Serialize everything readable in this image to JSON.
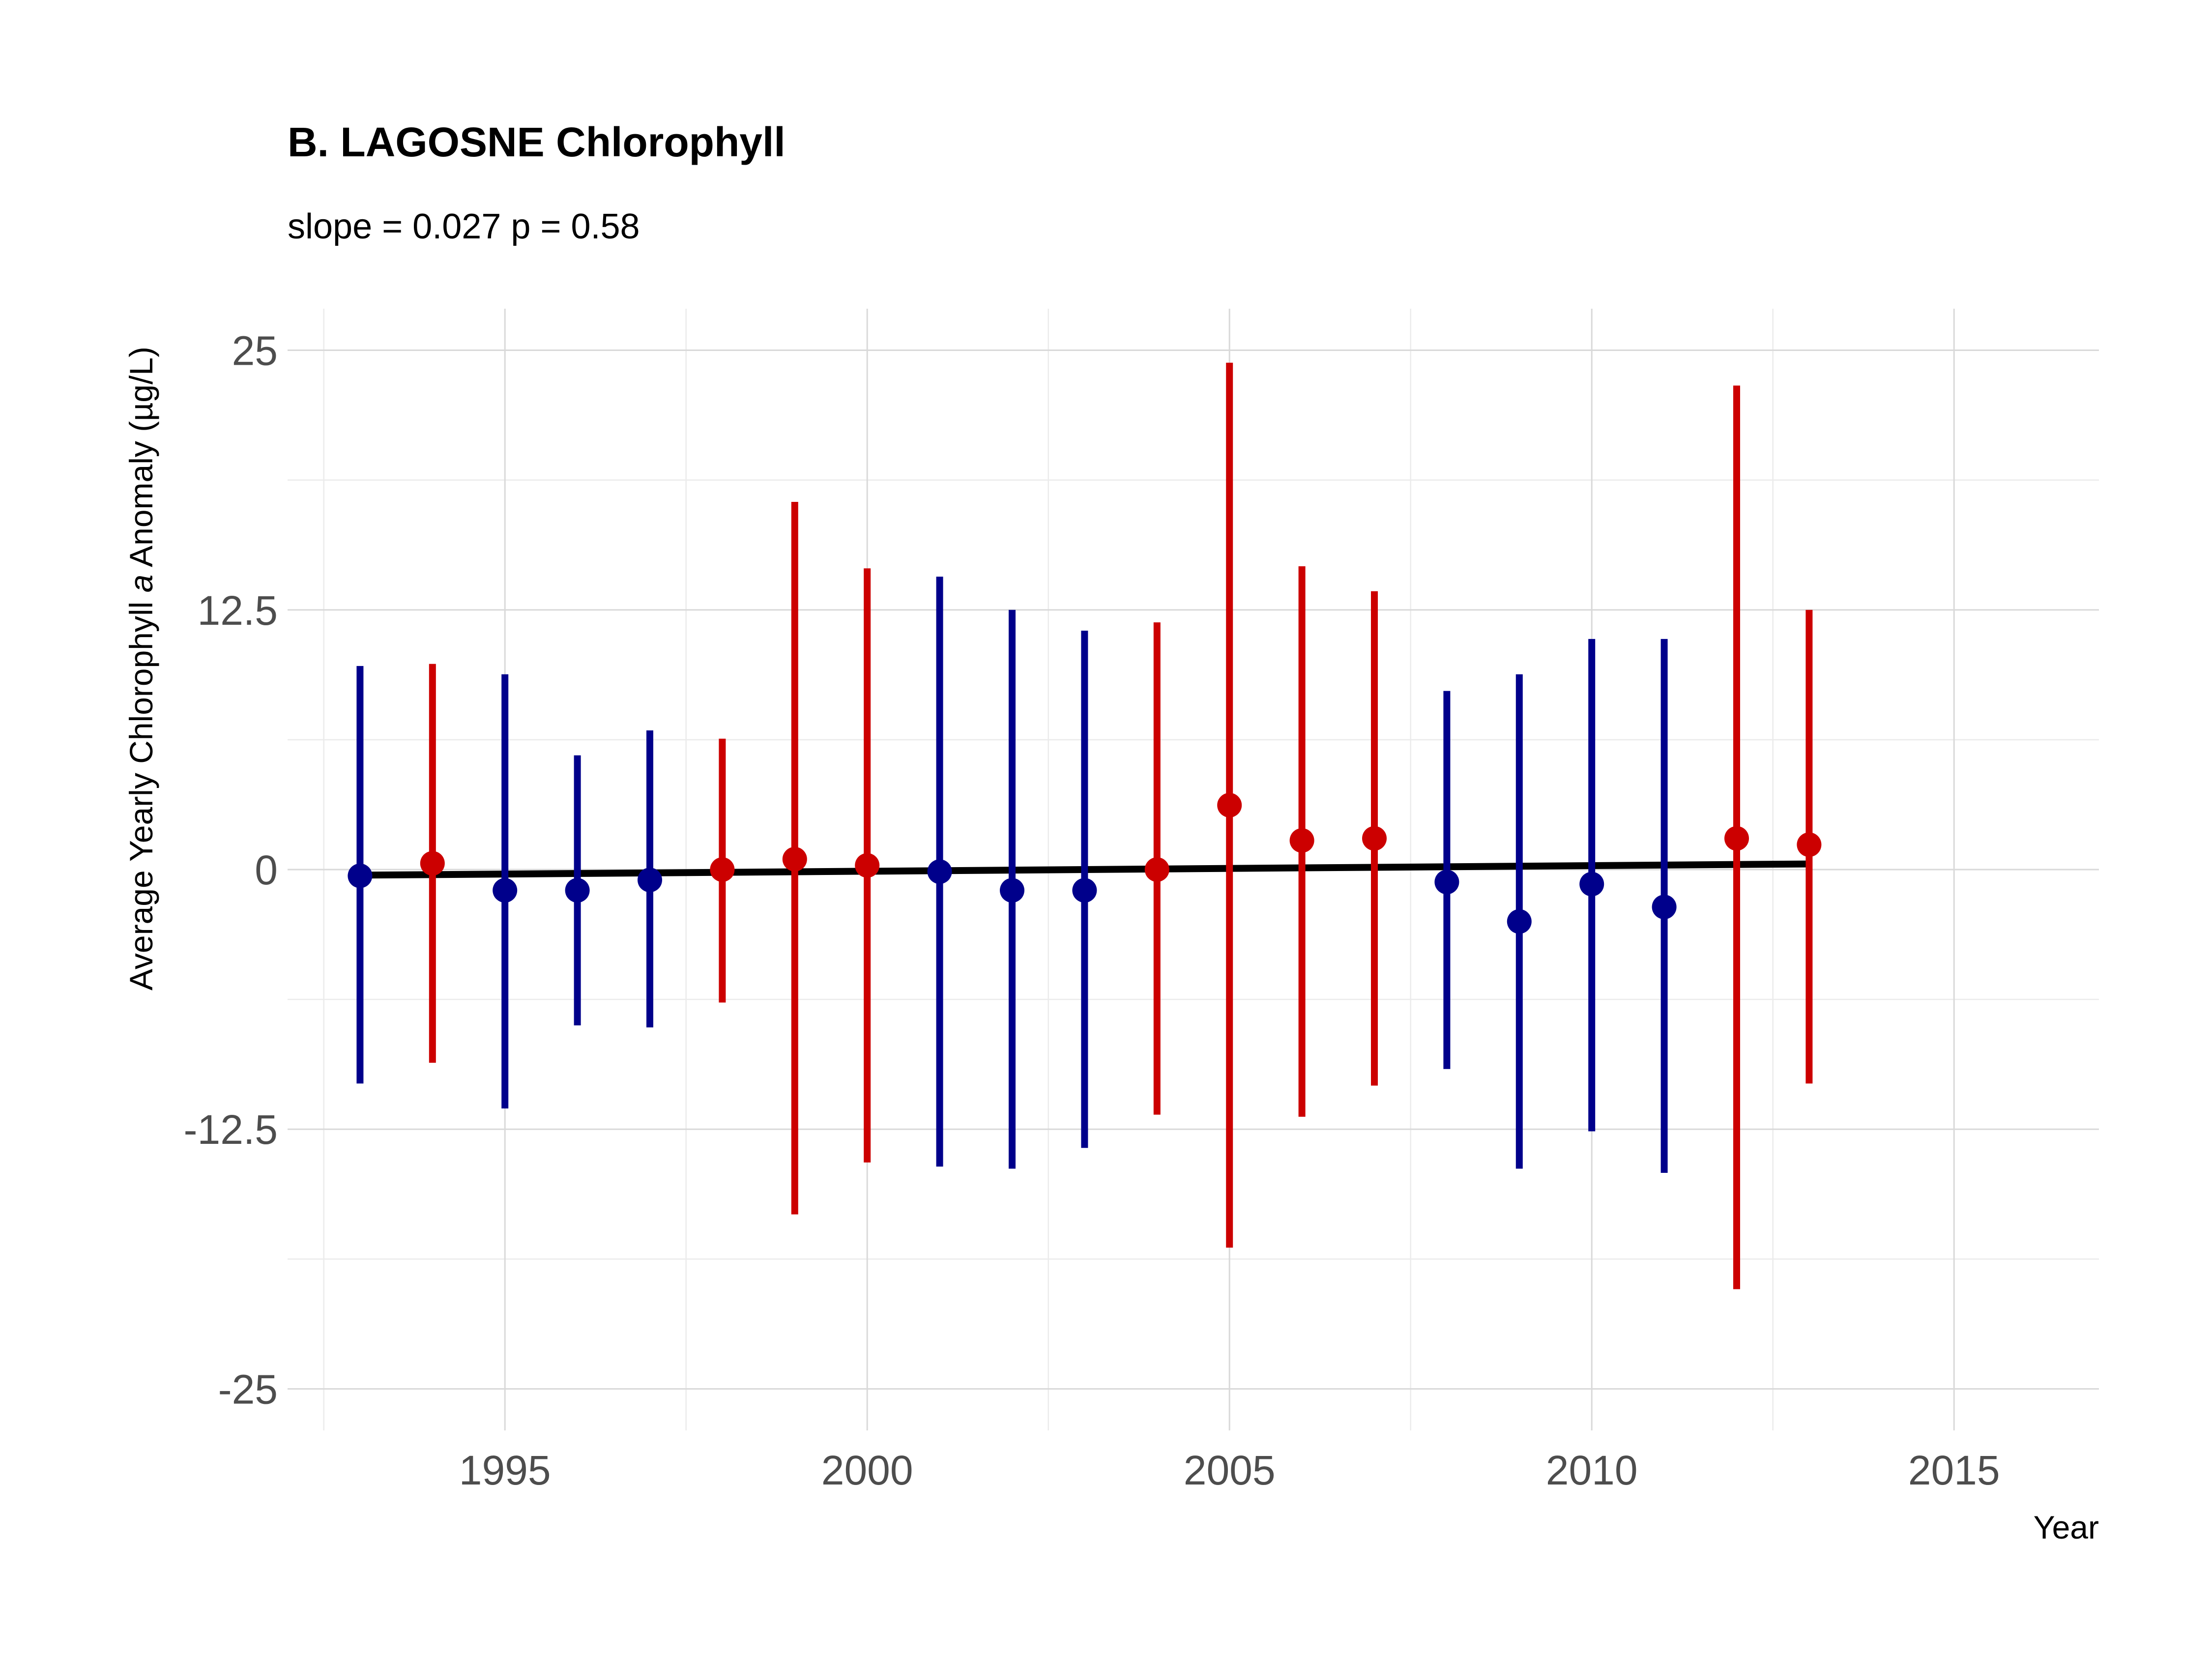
{
  "chart_data": {
    "type": "scatter",
    "title": "B. LAGOSNE Chlorophyll",
    "subtitle": "slope = 0.027 p = 0.58",
    "xlabel": "Year",
    "ylabel_parts": [
      "Average Yearly Chlorophyll ",
      "a",
      " Anomaly (µg/L)"
    ],
    "xlim": [
      1992,
      2017
    ],
    "ylim": [
      -27,
      27
    ],
    "x_ticks": [
      {
        "value": 1995,
        "label": "1995"
      },
      {
        "value": 2000,
        "label": "2000"
      },
      {
        "value": 2005,
        "label": "2005"
      },
      {
        "value": 2010,
        "label": "2010"
      },
      {
        "value": 2015,
        "label": "2015"
      }
    ],
    "y_ticks": [
      {
        "value": 25,
        "label": "25"
      },
      {
        "value": 12.5,
        "label": "12.5"
      },
      {
        "value": 0,
        "label": "0"
      },
      {
        "value": -12.5,
        "label": "-12.5"
      },
      {
        "value": -25,
        "label": "-25"
      }
    ],
    "grid": true,
    "colors": {
      "negative": "#00008B",
      "positive": "#CC0000",
      "trend": "#000000"
    },
    "series": [
      {
        "points": [
          {
            "x": 1993,
            "y": -0.3,
            "lower": -10.3,
            "upper": 9.8
          },
          {
            "x": 1994,
            "y": 0.3,
            "lower": -9.3,
            "upper": 9.9
          },
          {
            "x": 1995,
            "y": -1.0,
            "lower": -11.5,
            "upper": 9.4
          },
          {
            "x": 1996,
            "y": -1.0,
            "lower": -7.5,
            "upper": 5.5
          },
          {
            "x": 1997,
            "y": -0.5,
            "lower": -7.6,
            "upper": 6.7
          },
          {
            "x": 1998,
            "y": 0.0,
            "lower": -6.4,
            "upper": 6.3
          },
          {
            "x": 1999,
            "y": 0.5,
            "lower": -16.6,
            "upper": 17.7
          },
          {
            "x": 2000,
            "y": 0.2,
            "lower": -14.1,
            "upper": 14.5
          },
          {
            "x": 2001,
            "y": -0.1,
            "lower": -14.3,
            "upper": 14.1
          },
          {
            "x": 2002,
            "y": -1.0,
            "lower": -14.4,
            "upper": 12.5
          },
          {
            "x": 2003,
            "y": -1.0,
            "lower": -13.4,
            "upper": 11.5
          },
          {
            "x": 2004,
            "y": 0.0,
            "lower": -11.8,
            "upper": 11.9
          },
          {
            "x": 2005,
            "y": 3.1,
            "lower": -18.2,
            "upper": 24.4
          },
          {
            "x": 2006,
            "y": 1.4,
            "lower": -11.9,
            "upper": 14.6
          },
          {
            "x": 2007,
            "y": 1.5,
            "lower": -10.4,
            "upper": 13.4
          },
          {
            "x": 2008,
            "y": -0.6,
            "lower": -9.6,
            "upper": 8.6
          },
          {
            "x": 2009,
            "y": -2.5,
            "lower": -14.4,
            "upper": 9.4
          },
          {
            "x": 2010,
            "y": -0.7,
            "lower": -12.6,
            "upper": 11.1
          },
          {
            "x": 2011,
            "y": -1.8,
            "lower": -14.6,
            "upper": 11.1
          },
          {
            "x": 2012,
            "y": 1.5,
            "lower": -20.2,
            "upper": 23.3
          },
          {
            "x": 2013,
            "y": 1.2,
            "lower": -10.3,
            "upper": 12.5
          }
        ]
      }
    ],
    "trend_line": {
      "x": [
        1993,
        2013
      ],
      "y": [
        -0.27,
        0.27
      ]
    }
  }
}
